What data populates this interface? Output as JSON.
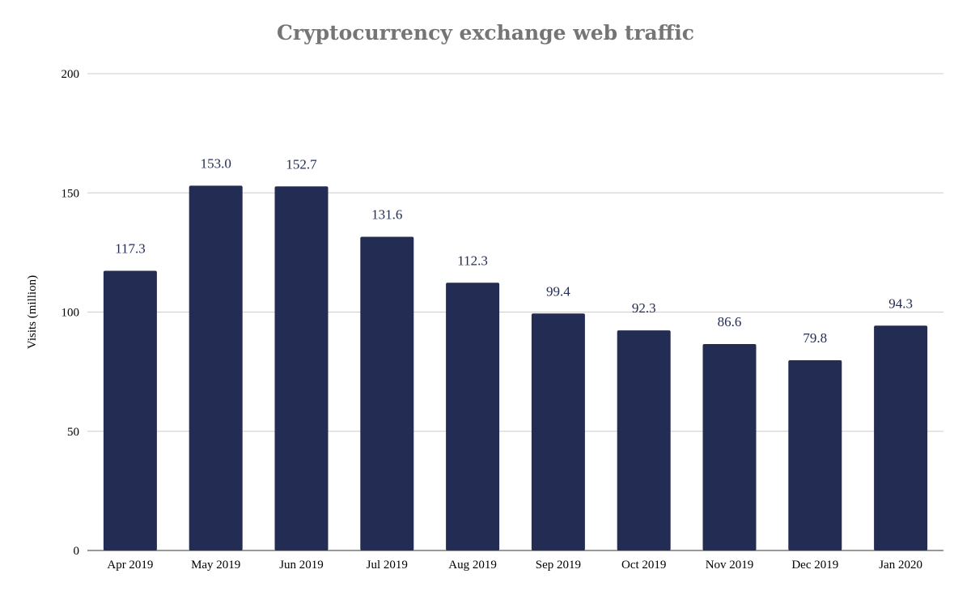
{
  "chart_data": {
    "type": "bar",
    "title": "Cryptocurrency exchange web traffic",
    "xlabel": "",
    "ylabel": "Visits (million)",
    "categories": [
      "Apr 2019",
      "May 2019",
      "Jun 2019",
      "Jul 2019",
      "Aug 2019",
      "Sep 2019",
      "Oct 2019",
      "Nov 2019",
      "Dec 2019",
      "Jan 2020"
    ],
    "values": [
      117.3,
      153.0,
      152.7,
      131.6,
      112.3,
      99.4,
      92.3,
      86.6,
      79.8,
      94.3
    ],
    "data_labels": [
      "117.3",
      "153.0",
      "152.7",
      "131.6",
      "112.3",
      "99.4",
      "92.3",
      "86.6",
      "79.8",
      "94.3"
    ],
    "ylim": [
      0,
      200
    ],
    "yticks": [
      0,
      50,
      100,
      150,
      200
    ],
    "grid": true,
    "legend": "none",
    "colors": {
      "bar": "#232c52",
      "data_label": "#232c52",
      "title": "#757575",
      "grid": "#cccccc",
      "axis": "#333333"
    }
  }
}
